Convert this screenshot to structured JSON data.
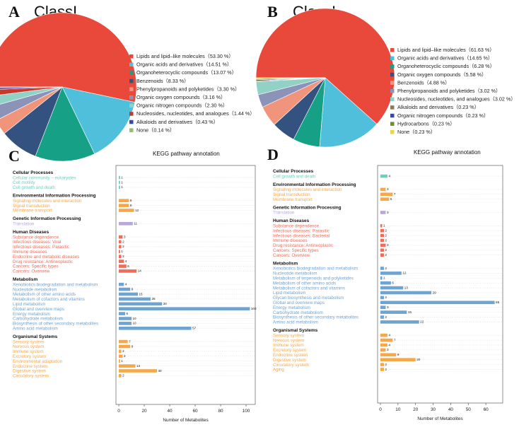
{
  "panels": {
    "A": "A",
    "B": "B",
    "C": "C",
    "D": "D"
  },
  "colors": {
    "cellular": "#6fcfbd",
    "environmental": "#f5a84a",
    "genetic": "#b9a6dc",
    "human": "#ef6b5a",
    "metabolism": "#6fa3d0",
    "organismal": "#f5a84a",
    "grid": "#c8c8c8"
  },
  "chart_data": [
    {
      "type": "pie",
      "title": "ClassI",
      "slices": [
        {
          "label": "Lipids and lipid–like molecules（53.30 %）",
          "value": 53.3,
          "color": "#e8493a"
        },
        {
          "label": "Organic acids and derivatives（14.51 %）",
          "value": 14.51,
          "color": "#4fbfdb"
        },
        {
          "label": "Organoheterocyclic compounds（13.07 %）",
          "value": 13.07,
          "color": "#16a086"
        },
        {
          "label": "Benzenoids（8.33 %）",
          "value": 8.33,
          "color": "#34527f"
        },
        {
          "label": "Phenylpropanoids and polyketides（3.30 %）",
          "value": 3.3,
          "color": "#f0947c"
        },
        {
          "label": "Organic oxygen compounds（3.16 %）",
          "value": 3.16,
          "color": "#8c93b8"
        },
        {
          "label": "Organic nitrogen compounds（2.30 %）",
          "value": 2.3,
          "color": "#92d2c6"
        },
        {
          "label": "Nucleosides, nucleotides, and analogues（1.44 %）",
          "value": 1.44,
          "color": "#c8392c"
        },
        {
          "label": "Alkaloids and derivatives（0.43 %）",
          "value": 0.43,
          "color": "#3a49a8"
        },
        {
          "label": "None（0.14 %）",
          "value": 0.14,
          "color": "#8fbf6a"
        }
      ]
    },
    {
      "type": "pie",
      "title": "ClassI",
      "slices": [
        {
          "label": "Lipids and lipid–like molecules（61.63 %）",
          "value": 61.63,
          "color": "#e8493a"
        },
        {
          "label": "Organic acids and derivatives（14.65 %）",
          "value": 14.65,
          "color": "#4fbfdb"
        },
        {
          "label": "Organoheterocyclic compounds（6.28 %）",
          "value": 6.28,
          "color": "#16a086"
        },
        {
          "label": "Organic oxygen compounds（5.58 %）",
          "value": 5.58,
          "color": "#34527f"
        },
        {
          "label": "Benzenoids（4.88 %）",
          "value": 4.88,
          "color": "#f0947c"
        },
        {
          "label": "Phenylpropanoids and polyketides（3.02 %）",
          "value": 3.02,
          "color": "#8c93b8"
        },
        {
          "label": "Nucleosides, nucleotides, and analogues（3.02 %）",
          "value": 3.02,
          "color": "#92d2c6"
        },
        {
          "label": "Alkaloids and derivatives（0.23 %）",
          "value": 0.23,
          "color": "#8b7a5a"
        },
        {
          "label": "Organic nitrogen compounds（0.23 %）",
          "value": 0.23,
          "color": "#3a49a8"
        },
        {
          "label": "Hydrocarbons（0.23 %）",
          "value": 0.23,
          "color": "#6b8e3a"
        },
        {
          "label": "None（0.23 %）",
          "value": 0.23,
          "color": "#e8d44d"
        }
      ]
    },
    {
      "type": "bar",
      "title": "KEGG pathway annotation",
      "xlabel": "Number of Metabolites",
      "xlim": [
        0,
        105
      ],
      "xticks": [
        0,
        20,
        40,
        60,
        80,
        100
      ],
      "groups": [
        {
          "name": "Cellular Processes",
          "key": "cellular",
          "items": [
            {
              "label": "Cellular community – eukaryotes",
              "value": 1
            },
            {
              "label": "Cell motility",
              "value": 1
            },
            {
              "label": "Cell growth and death",
              "value": 1
            }
          ]
        },
        {
          "name": "Environmental Information Processing",
          "key": "environmental",
          "items": [
            {
              "label": "Signaling molecules and interaction",
              "value": 8
            },
            {
              "label": "Signal transduction",
              "value": 8
            },
            {
              "label": "Membrane transport",
              "value": 12
            }
          ]
        },
        {
          "name": "Genetic Information Processing",
          "key": "genetic",
          "items": [
            {
              "label": "Translation",
              "value": 11
            }
          ]
        },
        {
          "name": "Human Diseases",
          "key": "human",
          "items": [
            {
              "label": "Substance dependence",
              "value": 3
            },
            {
              "label": "Infectious diseases: Viral",
              "value": 2
            },
            {
              "label": "Infectious diseases: Parasitic",
              "value": 2
            },
            {
              "label": "Immune diseases",
              "value": 1
            },
            {
              "label": "Endocrine and metabolic diseases",
              "value": 2
            },
            {
              "label": "Drug resistance: Antineoplastic",
              "value": 4
            },
            {
              "label": "Cancers: Specific types",
              "value": 6
            },
            {
              "label": "Cancers: Overview",
              "value": 14
            }
          ]
        },
        {
          "name": "Metabolism",
          "key": "metabolism",
          "items": [
            {
              "label": "Xenobiotics biodegradation and metabolism",
              "value": 4
            },
            {
              "label": "Nucleotide metabolism",
              "value": 9
            },
            {
              "label": "Metabolism of other amino acids",
              "value": 15
            },
            {
              "label": "Metabolism of cofactors and vitamins",
              "value": 25
            },
            {
              "label": "Lipid metabolism",
              "value": 34
            },
            {
              "label": "Global and overview maps",
              "value": 103
            },
            {
              "label": "Energy metabolism",
              "value": 5
            },
            {
              "label": "Carbohydrate metabolism",
              "value": 10
            },
            {
              "label": "Biosynthesis of other secondary metabolites",
              "value": 10
            },
            {
              "label": "Amino acid metabolism",
              "value": 57
            }
          ]
        },
        {
          "name": "Organismal Systems",
          "key": "organismal",
          "items": [
            {
              "label": "Sensory system",
              "value": 7
            },
            {
              "label": "Nervous system",
              "value": 9
            },
            {
              "label": "Immune system",
              "value": 2
            },
            {
              "label": "Excretory system",
              "value": 3
            },
            {
              "label": "Environmental adaptation",
              "value": 1
            },
            {
              "label": "Endocrine system",
              "value": 13
            },
            {
              "label": "Digestive system",
              "value": 30
            },
            {
              "label": "Circulatory system",
              "value": 2
            }
          ]
        }
      ]
    },
    {
      "type": "bar",
      "title": "KEGG pathway annotation",
      "xlabel": "Number of Metabolites",
      "xlim": [
        0,
        68
      ],
      "xticks": [
        0,
        10,
        20,
        30,
        40,
        50,
        60
      ],
      "groups": [
        {
          "name": "Cellular Processes",
          "key": "cellular",
          "items": [
            {
              "label": "Cell growth and death",
              "value": 4
            }
          ]
        },
        {
          "name": "Environmental Information Processing",
          "key": "environmental",
          "items": [
            {
              "label": "Signaling molecules and interaction",
              "value": 3
            },
            {
              "label": "Signal transduction",
              "value": 7
            },
            {
              "label": "Membrane transport",
              "value": 5
            }
          ]
        },
        {
          "name": "Genetic Information Processing",
          "key": "genetic",
          "items": [
            {
              "label": "Translation",
              "value": 3
            }
          ]
        },
        {
          "name": "Human Diseases",
          "key": "human",
          "items": [
            {
              "label": "Substance dependence",
              "value": 1
            },
            {
              "label": "Infectious diseases: Parasitic",
              "value": 2
            },
            {
              "label": "Infectious diseases: Bacterial",
              "value": 2
            },
            {
              "label": "Immune diseases",
              "value": 2
            },
            {
              "label": "Drug resistance: Antineoplastic",
              "value": 3
            },
            {
              "label": "Cancers: Specific types",
              "value": 2
            },
            {
              "label": "Cancers: Overview",
              "value": 2
            }
          ]
        },
        {
          "name": "Metabolism",
          "key": "metabolism",
          "items": [
            {
              "label": "Xenobiotics biodegradation and metabolism",
              "value": 2
            },
            {
              "label": "Nucleotide metabolism",
              "value": 12
            },
            {
              "label": "Metabolism of terpenoids and polyketides",
              "value": 1
            },
            {
              "label": "Metabolism of other amino acids",
              "value": 6
            },
            {
              "label": "Metabolism of cofactors and vitamins",
              "value": 13
            },
            {
              "label": "Lipid metabolism",
              "value": 29
            },
            {
              "label": "Glycan biosynthesis and metabolism",
              "value": 2
            },
            {
              "label": "Global and overview maps",
              "value": 65
            },
            {
              "label": "Energy metabolism",
              "value": 3
            },
            {
              "label": "Carbohydrate metabolism",
              "value": 15
            },
            {
              "label": "Biosynthesis of other secondary metabolites",
              "value": 2
            },
            {
              "label": "Amino acid metabolism",
              "value": 22
            }
          ]
        },
        {
          "name": "Organismal Systems",
          "key": "organismal",
          "items": [
            {
              "label": "Sensory system",
              "value": 4
            },
            {
              "label": "Nervous system",
              "value": 7
            },
            {
              "label": "Immune system",
              "value": 4
            },
            {
              "label": "Excretory system",
              "value": 3
            },
            {
              "label": "Endocrine system",
              "value": 9
            },
            {
              "label": "Digestive system",
              "value": 20
            },
            {
              "label": "Circulatory system",
              "value": 2
            },
            {
              "label": "Aging",
              "value": 2
            }
          ]
        }
      ]
    }
  ]
}
